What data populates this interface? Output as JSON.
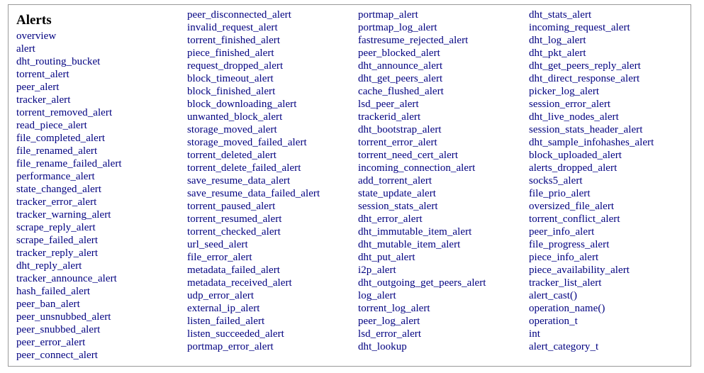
{
  "title": "Alerts",
  "columns": [
    [
      "overview",
      "alert",
      "dht_routing_bucket",
      "torrent_alert",
      "peer_alert",
      "tracker_alert",
      "torrent_removed_alert",
      "read_piece_alert",
      "file_completed_alert",
      "file_renamed_alert",
      "file_rename_failed_alert",
      "performance_alert",
      "state_changed_alert",
      "tracker_error_alert",
      "tracker_warning_alert",
      "scrape_reply_alert",
      "scrape_failed_alert",
      "tracker_reply_alert",
      "dht_reply_alert",
      "tracker_announce_alert",
      "hash_failed_alert",
      "peer_ban_alert",
      "peer_unsnubbed_alert",
      "peer_snubbed_alert",
      "peer_error_alert",
      "peer_connect_alert"
    ],
    [
      "peer_disconnected_alert",
      "invalid_request_alert",
      "torrent_finished_alert",
      "piece_finished_alert",
      "request_dropped_alert",
      "block_timeout_alert",
      "block_finished_alert",
      "block_downloading_alert",
      "unwanted_block_alert",
      "storage_moved_alert",
      "storage_moved_failed_alert",
      "torrent_deleted_alert",
      "torrent_delete_failed_alert",
      "save_resume_data_alert",
      "save_resume_data_failed_alert",
      "torrent_paused_alert",
      "torrent_resumed_alert",
      "torrent_checked_alert",
      "url_seed_alert",
      "file_error_alert",
      "metadata_failed_alert",
      "metadata_received_alert",
      "udp_error_alert",
      "external_ip_alert",
      "listen_failed_alert",
      "listen_succeeded_alert",
      "portmap_error_alert"
    ],
    [
      "portmap_alert",
      "portmap_log_alert",
      "fastresume_rejected_alert",
      "peer_blocked_alert",
      "dht_announce_alert",
      "dht_get_peers_alert",
      "cache_flushed_alert",
      "lsd_peer_alert",
      "trackerid_alert",
      "dht_bootstrap_alert",
      "torrent_error_alert",
      "torrent_need_cert_alert",
      "incoming_connection_alert",
      "add_torrent_alert",
      "state_update_alert",
      "session_stats_alert",
      "dht_error_alert",
      "dht_immutable_item_alert",
      "dht_mutable_item_alert",
      "dht_put_alert",
      "i2p_alert",
      "dht_outgoing_get_peers_alert",
      "log_alert",
      "torrent_log_alert",
      "peer_log_alert",
      "lsd_error_alert",
      "dht_lookup"
    ],
    [
      "dht_stats_alert",
      "incoming_request_alert",
      "dht_log_alert",
      "dht_pkt_alert",
      "dht_get_peers_reply_alert",
      "dht_direct_response_alert",
      "picker_log_alert",
      "session_error_alert",
      "dht_live_nodes_alert",
      "session_stats_header_alert",
      "dht_sample_infohashes_alert",
      "block_uploaded_alert",
      "alerts_dropped_alert",
      "socks5_alert",
      "file_prio_alert",
      "oversized_file_alert",
      "torrent_conflict_alert",
      "peer_info_alert",
      "file_progress_alert",
      "piece_info_alert",
      "piece_availability_alert",
      "tracker_list_alert",
      "alert_cast()",
      "operation_name()",
      "operation_t",
      "int",
      "alert_category_t"
    ]
  ]
}
